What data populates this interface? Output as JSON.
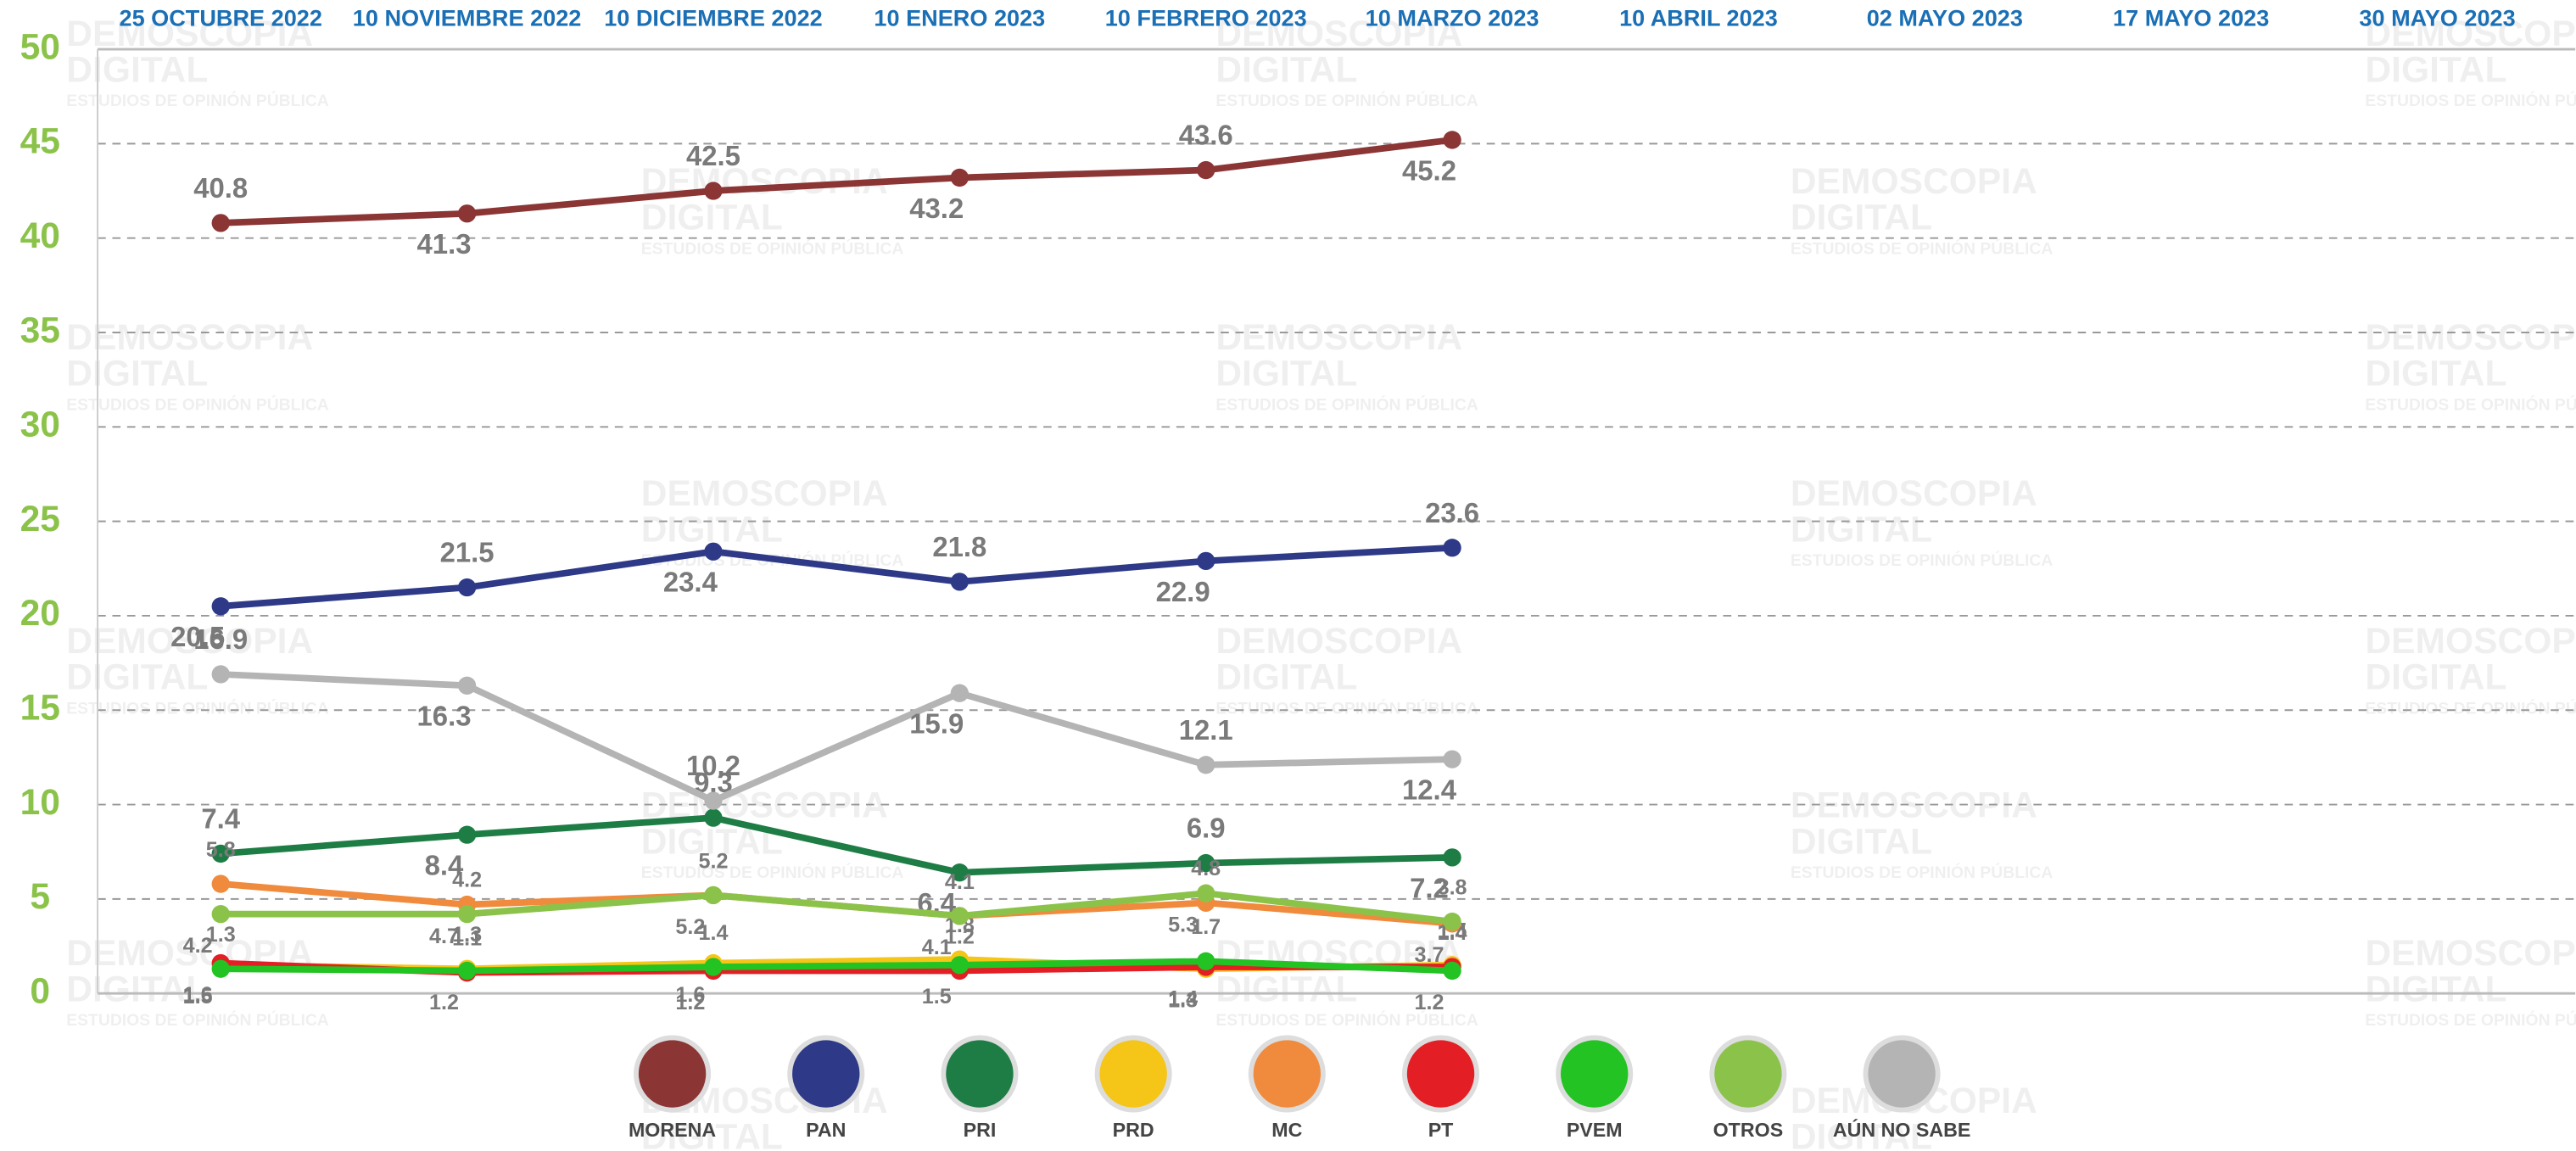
{
  "chart_data": {
    "type": "line",
    "watermark": [
      "DEMOSCOPIA",
      "DIGITAL",
      "ESTUDIOS DE OPINIÓN PÚBLICA"
    ],
    "categories": [
      "25 OCTUBRE 2022",
      "10 NOVIEMBRE 2022",
      "10 DICIEMBRE 2022",
      "10 ENERO 2023",
      "10 FEBRERO 2023",
      "10 MARZO 2023",
      "10 ABRIL 2023",
      "02 MAYO 2023",
      "17 MAYO 2023",
      "30 MAYO 2023"
    ],
    "series": [
      {
        "name": "MORENA",
        "color": "#8b3535",
        "values": [
          40.8,
          41.3,
          42.5,
          43.2,
          43.6,
          45.2,
          null,
          null,
          null,
          null
        ]
      },
      {
        "name": "PAN",
        "color": "#2e3a87",
        "values": [
          20.5,
          21.5,
          23.4,
          21.8,
          22.9,
          23.6,
          null,
          null,
          null,
          null
        ]
      },
      {
        "name": "PRI",
        "color": "#1e7d45",
        "values": [
          7.4,
          8.4,
          9.3,
          6.4,
          6.9,
          7.2,
          null,
          null,
          null,
          null
        ]
      },
      {
        "name": "PRD",
        "color": "#f5c518",
        "values": [
          1.5,
          1.3,
          1.6,
          1.8,
          1.3,
          1.5,
          null,
          null,
          null,
          null
        ]
      },
      {
        "name": "MC",
        "color": "#f08a3c",
        "values": [
          5.8,
          4.7,
          5.2,
          4.1,
          4.8,
          3.7,
          null,
          null,
          null,
          null
        ]
      },
      {
        "name": "PT",
        "color": "#e31e24",
        "values": [
          1.6,
          1.1,
          1.2,
          1.2,
          1.4,
          1.4,
          null,
          null,
          null,
          null
        ]
      },
      {
        "name": "PVEM",
        "color": "#22c322",
        "values": [
          1.3,
          1.2,
          1.4,
          1.5,
          1.7,
          1.2,
          null,
          null,
          null,
          null
        ]
      },
      {
        "name": "OTROS",
        "color": "#8bc34a",
        "values": [
          4.2,
          4.2,
          5.2,
          4.1,
          5.3,
          3.8,
          null,
          null,
          null,
          null
        ]
      },
      {
        "name": "AÚN NO SABE",
        "color": "#b4b4b4",
        "values": [
          16.9,
          16.3,
          10.2,
          15.9,
          12.1,
          12.4,
          null,
          null,
          null,
          null
        ]
      }
    ],
    "ylim": [
      0,
      50
    ],
    "yticks": [
      0,
      5,
      10,
      15,
      20,
      25,
      30,
      35,
      40,
      45,
      50
    ],
    "grid": true,
    "legend": "bottom"
  }
}
